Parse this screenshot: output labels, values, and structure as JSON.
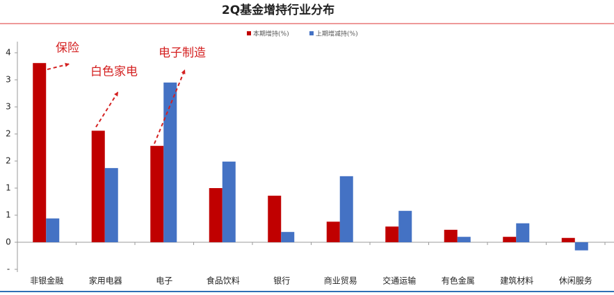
{
  "chart_data": {
    "type": "bar",
    "title": "2Q基金增持行业分布",
    "categories": [
      "非银金融",
      "家用电器",
      "电子",
      "食品饮料",
      "银行",
      "商业贸易",
      "交通运输",
      "有色金属",
      "建筑材料",
      "休闲服务"
    ],
    "series": [
      {
        "name": "本期增持(%)",
        "color": "#c00000",
        "values": [
          3.31,
          2.06,
          1.78,
          1.0,
          0.86,
          0.38,
          0.29,
          0.23,
          0.1,
          0.08
        ]
      },
      {
        "name": "上期增减持(%)",
        "color": "#4472c4",
        "values": [
          0.44,
          1.37,
          2.95,
          1.49,
          0.19,
          1.22,
          0.58,
          0.1,
          0.35,
          -0.15
        ]
      }
    ],
    "ylim": [
      -0.5,
      3.5
    ],
    "yticks": [
      {
        "value": -0.5,
        "label": "-"
      },
      0,
      {
        "value": 0.5,
        "label": "1"
      },
      1,
      {
        "value": 1.5,
        "label": "2"
      },
      2,
      {
        "value": 2.5,
        "label": "3"
      },
      3,
      {
        "value": 3.5,
        "label": "4"
      }
    ],
    "annotations": [
      "保险",
      "白色家电",
      "电子制造"
    ],
    "legend": "top"
  }
}
